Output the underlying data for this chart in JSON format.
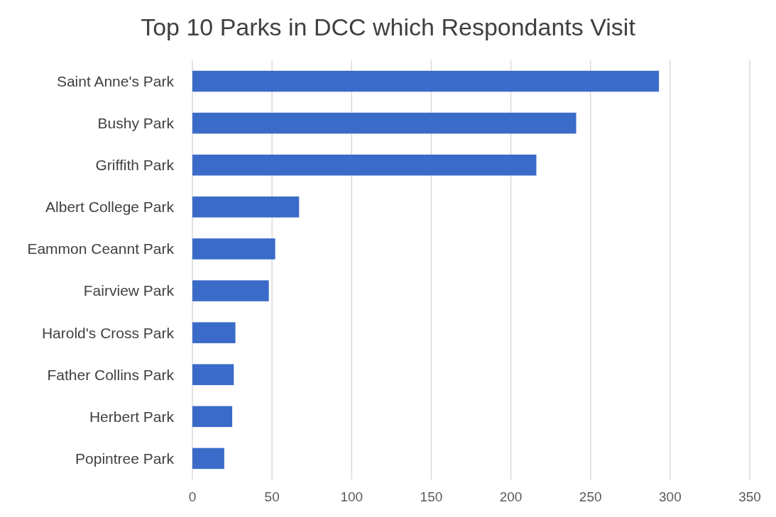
{
  "chart_data": {
    "type": "bar",
    "orientation": "horizontal",
    "title": "Top 10 Parks in DCC which Respondants Visit",
    "categories": [
      "Saint Anne's Park",
      "Bushy Park",
      "Griffith Park",
      "Albert College Park",
      "Eammon Ceannt Park",
      "Fairview Park",
      "Harold's Cross Park",
      "Father Collins Park",
      "Herbert Park",
      "Popintree Park"
    ],
    "values": [
      293,
      241,
      216,
      67,
      52,
      48,
      27,
      26,
      25,
      20
    ],
    "color": "#3a6bc8",
    "xlim": [
      0,
      350
    ],
    "xticks": [
      0,
      50,
      100,
      150,
      200,
      250,
      300,
      350
    ],
    "grid": "x"
  }
}
